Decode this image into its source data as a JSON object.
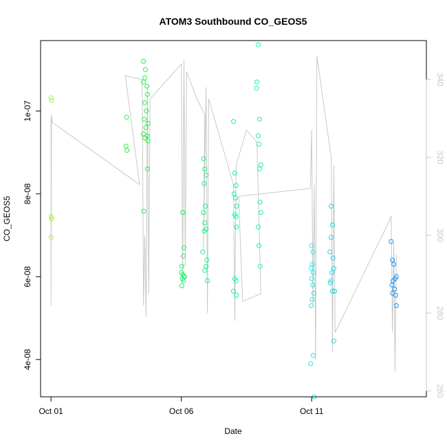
{
  "chart_data": {
    "type": "scatter",
    "title": "ATOM3 Southbound CO_GEOS5",
    "xlabel": "Date",
    "ylabel": "CO_GEOS5",
    "x_ticks": [
      {
        "label": "Oct 01",
        "day": 1
      },
      {
        "label": "Oct 06",
        "day": 6
      },
      {
        "label": "Oct 11",
        "day": 11
      }
    ],
    "y_ticks": [
      {
        "label": "4e-08",
        "value": 4e-08
      },
      {
        "label": "6e-08",
        "value": 6e-08
      },
      {
        "label": "8e-08",
        "value": 8e-08
      },
      {
        "label": "1e-07",
        "value": 1e-07
      }
    ],
    "y2_ticks": [
      "260",
      "280",
      "300",
      "320",
      "340"
    ],
    "xlim": [
      0.6,
      15.4
    ],
    "ylim": [
      3.1e-08,
      1.17e-07
    ],
    "y2lim": [
      258.5,
      350
    ],
    "point_color_scale": [
      "#a8f040",
      "#22f030",
      "#10f0a0",
      "#20e8e8",
      "#1890f0"
    ],
    "line_color": "#c8c8c8",
    "points": [
      [
        1.0,
        1.032e-07
      ],
      [
        1.02,
        1.026e-07
      ],
      [
        1.0,
        7.45e-08
      ],
      [
        1.03,
        7.4e-08
      ],
      [
        1.01,
        6.95e-08
      ],
      [
        3.9,
        9.85e-08
      ],
      [
        3.88,
        9.15e-08
      ],
      [
        3.92,
        9.05e-08
      ],
      [
        4.55,
        1.12e-07
      ],
      [
        4.62,
        1.1e-07
      ],
      [
        4.6,
        1.08e-07
      ],
      [
        4.55,
        1.07e-07
      ],
      [
        4.68,
        1.06e-07
      ],
      [
        4.7,
        1.04e-07
      ],
      [
        4.6,
        1.02e-07
      ],
      [
        4.66,
        1e-07
      ],
      [
        4.58,
        9.8e-08
      ],
      [
        4.72,
        9.7e-08
      ],
      [
        4.64,
        9.6e-08
      ],
      [
        4.55,
        9.45e-08
      ],
      [
        4.6,
        9.35e-08
      ],
      [
        4.68,
        9.4e-08
      ],
      [
        4.72,
        9.28e-08
      ],
      [
        4.7,
        8.6e-08
      ],
      [
        4.56,
        7.58e-08
      ],
      [
        6.05,
        7.55e-08
      ],
      [
        6.1,
        6.7e-08
      ],
      [
        6.08,
        6.5e-08
      ],
      [
        6.02,
        6.25e-08
      ],
      [
        6.0,
        6.1e-08
      ],
      [
        6.05,
        6.05e-08
      ],
      [
        6.1,
        6e-08
      ],
      [
        6.04,
        5.95e-08
      ],
      [
        6.08,
        5.9e-08
      ],
      [
        6.02,
        5.78e-08
      ],
      [
        6.12,
        6e-08
      ],
      [
        6.85,
        8.85e-08
      ],
      [
        6.9,
        8.6e-08
      ],
      [
        6.95,
        8.45e-08
      ],
      [
        6.88,
        8.25e-08
      ],
      [
        6.92,
        7.7e-08
      ],
      [
        6.85,
        7.55e-08
      ],
      [
        6.9,
        7.3e-08
      ],
      [
        6.95,
        7.15e-08
      ],
      [
        6.88,
        7.1e-08
      ],
      [
        6.82,
        6.6e-08
      ],
      [
        6.98,
        6.4e-08
      ],
      [
        6.95,
        6.25e-08
      ],
      [
        6.9,
        6.15e-08
      ],
      [
        7.0,
        5.9e-08
      ],
      [
        8.0,
        9.75e-08
      ],
      [
        8.05,
        8.5e-08
      ],
      [
        8.1,
        8.2e-08
      ],
      [
        8.02,
        8e-08
      ],
      [
        8.08,
        7.9e-08
      ],
      [
        8.12,
        7.7e-08
      ],
      [
        8.05,
        7.5e-08
      ],
      [
        8.1,
        7.45e-08
      ],
      [
        8.12,
        7.2e-08
      ],
      [
        8.05,
        5.95e-08
      ],
      [
        8.1,
        5.9e-08
      ],
      [
        8.0,
        5.65e-08
      ],
      [
        8.12,
        5.55e-08
      ],
      [
        8.95,
        1.16e-07
      ],
      [
        8.9,
        1.07e-07
      ],
      [
        8.88,
        1.055e-07
      ],
      [
        9.0,
        9.8e-08
      ],
      [
        8.95,
        9.4e-08
      ],
      [
        8.98,
        9.2e-08
      ],
      [
        9.05,
        8.7e-08
      ],
      [
        9.0,
        8.6e-08
      ],
      [
        9.02,
        7.8e-08
      ],
      [
        9.05,
        7.55e-08
      ],
      [
        8.95,
        7.2e-08
      ],
      [
        8.98,
        6.75e-08
      ],
      [
        9.02,
        6.25e-08
      ],
      [
        11.0,
        6.75e-08
      ],
      [
        11.05,
        6.6e-08
      ],
      [
        11.02,
        6.3e-08
      ],
      [
        10.98,
        6.2e-08
      ],
      [
        11.06,
        6.1e-08
      ],
      [
        11.0,
        5.95e-08
      ],
      [
        11.04,
        5.8e-08
      ],
      [
        11.08,
        5.6e-08
      ],
      [
        11.02,
        5.45e-08
      ],
      [
        10.98,
        5.3e-08
      ],
      [
        11.06,
        4.1e-08
      ],
      [
        10.96,
        3.9e-08
      ],
      [
        11.1,
        3.1e-08
      ],
      [
        11.75,
        7.7e-08
      ],
      [
        11.8,
        7.25e-08
      ],
      [
        11.75,
        6.95e-08
      ],
      [
        11.7,
        6.6e-08
      ],
      [
        11.82,
        6.45e-08
      ],
      [
        11.85,
        6.2e-08
      ],
      [
        11.78,
        6.1e-08
      ],
      [
        11.74,
        5.9e-08
      ],
      [
        11.72,
        5.85e-08
      ],
      [
        11.8,
        5.65e-08
      ],
      [
        11.88,
        5.65e-08
      ],
      [
        11.85,
        4.45e-08
      ],
      [
        14.05,
        6.85e-08
      ],
      [
        14.1,
        6.4e-08
      ],
      [
        14.15,
        6.3e-08
      ],
      [
        14.25,
        6e-08
      ],
      [
        14.2,
        5.95e-08
      ],
      [
        14.12,
        5.9e-08
      ],
      [
        14.08,
        5.8e-08
      ],
      [
        14.18,
        5.7e-08
      ],
      [
        14.1,
        5.6e-08
      ],
      [
        14.22,
        5.55e-08
      ],
      [
        14.25,
        5.3e-08
      ]
    ],
    "y2_series": [
      [
        1.0,
        330
      ],
      [
        1.0,
        282
      ],
      [
        1.02,
        331
      ],
      [
        1.05,
        329
      ],
      [
        4.4,
        313
      ],
      [
        3.85,
        341
      ],
      [
        4.5,
        340
      ],
      [
        4.55,
        282
      ],
      [
        4.6,
        300
      ],
      [
        4.65,
        279
      ],
      [
        4.7,
        338
      ],
      [
        4.75,
        285
      ],
      [
        4.8,
        335
      ],
      [
        6.0,
        344
      ],
      [
        6.05,
        288
      ],
      [
        6.1,
        345
      ],
      [
        6.15,
        292
      ],
      [
        6.2,
        342
      ],
      [
        6.6,
        335
      ],
      [
        6.9,
        331
      ],
      [
        6.85,
        296
      ],
      [
        6.95,
        338
      ],
      [
        7.0,
        280
      ],
      [
        7.05,
        335
      ],
      [
        8.0,
        313
      ],
      [
        8.05,
        278
      ],
      [
        8.1,
        318
      ],
      [
        8.5,
        327
      ],
      [
        8.9,
        324
      ],
      [
        9.05,
        285
      ],
      [
        8.35,
        283
      ],
      [
        8.2,
        310
      ],
      [
        10.95,
        312
      ],
      [
        11.0,
        327
      ],
      [
        11.05,
        282
      ],
      [
        11.1,
        313
      ],
      [
        11.15,
        268
      ],
      [
        11.2,
        346
      ],
      [
        11.75,
        320
      ],
      [
        11.8,
        270
      ],
      [
        11.85,
        318
      ],
      [
        11.9,
        275
      ],
      [
        14.0,
        304
      ],
      [
        14.05,
        305
      ],
      [
        14.1,
        275
      ],
      [
        14.15,
        298
      ],
      [
        14.2,
        265
      ],
      [
        14.25,
        295
      ]
    ]
  }
}
